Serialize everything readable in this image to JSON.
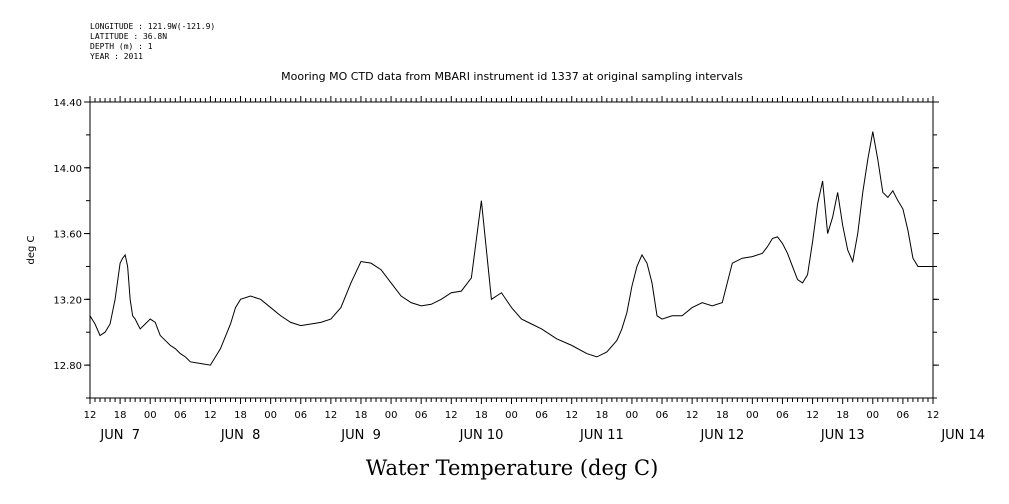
{
  "metadata": {
    "longitude": "LONGITUDE : 121.9W(-121.9)",
    "latitude": "LATITUDE : 36.8N",
    "depth": "DEPTH (m) : 1",
    "year": "YEAR : 2011"
  },
  "chart_data": {
    "type": "line",
    "title": "Mooring MO CTD data from MBARI instrument id 1337 at original sampling intervals",
    "xlabel": "Water Temperature (deg C)",
    "ylabel": "deg C",
    "ylim": [
      12.6,
      14.4
    ],
    "y_ticks": [
      "12.80",
      "13.20",
      "13.60",
      "14.00",
      "14.40"
    ],
    "x_range_hours": [
      0,
      168
    ],
    "x_hour_ticks": [
      "12",
      "18",
      "00",
      "06",
      "12",
      "18",
      "00",
      "06",
      "12",
      "18",
      "00",
      "06",
      "12",
      "18",
      "00",
      "06",
      "12",
      "18",
      "00",
      "06",
      "12",
      "18",
      "00",
      "06",
      "12",
      "18",
      "00",
      "06",
      "12"
    ],
    "x_day_labels": [
      "JUN  7",
      "JUN  8",
      "JUN  9",
      "JUN 10",
      "JUN 11",
      "JUN 12",
      "JUN 13",
      "JUN 14"
    ],
    "series": [
      {
        "name": "",
        "x": [
          0,
          1,
          2,
          3,
          4,
          5,
          6,
          6.5,
          7,
          7.5,
          8,
          8.5,
          9,
          9.5,
          10,
          11,
          12,
          13,
          13.5,
          14,
          15,
          16,
          17,
          18,
          19,
          20,
          22,
          24,
          26,
          28,
          29,
          30,
          32,
          34,
          36,
          38,
          40,
          42,
          44,
          46,
          48,
          50,
          52,
          54,
          56,
          58,
          60,
          62,
          64,
          66,
          68,
          70,
          72,
          74,
          76,
          78,
          80,
          82,
          84,
          86,
          88,
          90,
          93,
          96,
          99,
          101,
          103,
          105,
          106,
          107,
          108,
          109,
          110,
          111,
          112,
          113,
          114,
          116,
          118,
          120,
          122,
          124,
          126,
          128,
          130,
          132,
          134,
          135,
          136,
          137,
          138,
          139,
          140,
          141,
          142,
          143,
          144,
          145,
          146,
          147,
          148,
          149,
          150,
          151,
          152,
          153,
          154,
          155,
          156,
          157,
          158,
          159,
          160,
          161,
          162,
          163,
          164,
          165,
          166,
          167,
          168
        ],
        "values": [
          13.1,
          13.05,
          12.98,
          13.0,
          13.05,
          13.2,
          13.42,
          13.45,
          13.47,
          13.4,
          13.2,
          13.1,
          13.08,
          13.05,
          13.02,
          13.05,
          13.08,
          13.06,
          13.02,
          12.98,
          12.95,
          12.92,
          12.9,
          12.87,
          12.85,
          12.82,
          12.81,
          12.8,
          12.9,
          13.05,
          13.15,
          13.2,
          13.22,
          13.2,
          13.15,
          13.1,
          13.06,
          13.04,
          13.05,
          13.06,
          13.08,
          13.15,
          13.3,
          13.43,
          13.42,
          13.38,
          13.3,
          13.22,
          13.18,
          13.16,
          13.17,
          13.2,
          13.24,
          13.25,
          13.33,
          13.8,
          13.2,
          13.24,
          13.15,
          13.08,
          13.05,
          13.02,
          12.96,
          12.92,
          12.87,
          12.85,
          12.88,
          12.95,
          13.02,
          13.12,
          13.28,
          13.4,
          13.47,
          13.42,
          13.3,
          13.1,
          13.08,
          13.1,
          13.1,
          13.15,
          13.18,
          13.16,
          13.18,
          13.42,
          13.45,
          13.46,
          13.48,
          13.52,
          13.57,
          13.58,
          13.54,
          13.48,
          13.4,
          13.32,
          13.3,
          13.35,
          13.55,
          13.78,
          13.92,
          13.6,
          13.7,
          13.85,
          13.65,
          13.5,
          13.43,
          13.6,
          13.85,
          14.05,
          14.22,
          14.05,
          13.85,
          13.82,
          13.86,
          13.8,
          13.75,
          13.62,
          13.45,
          13.4,
          13.4,
          13.4,
          13.4
        ]
      }
    ]
  }
}
